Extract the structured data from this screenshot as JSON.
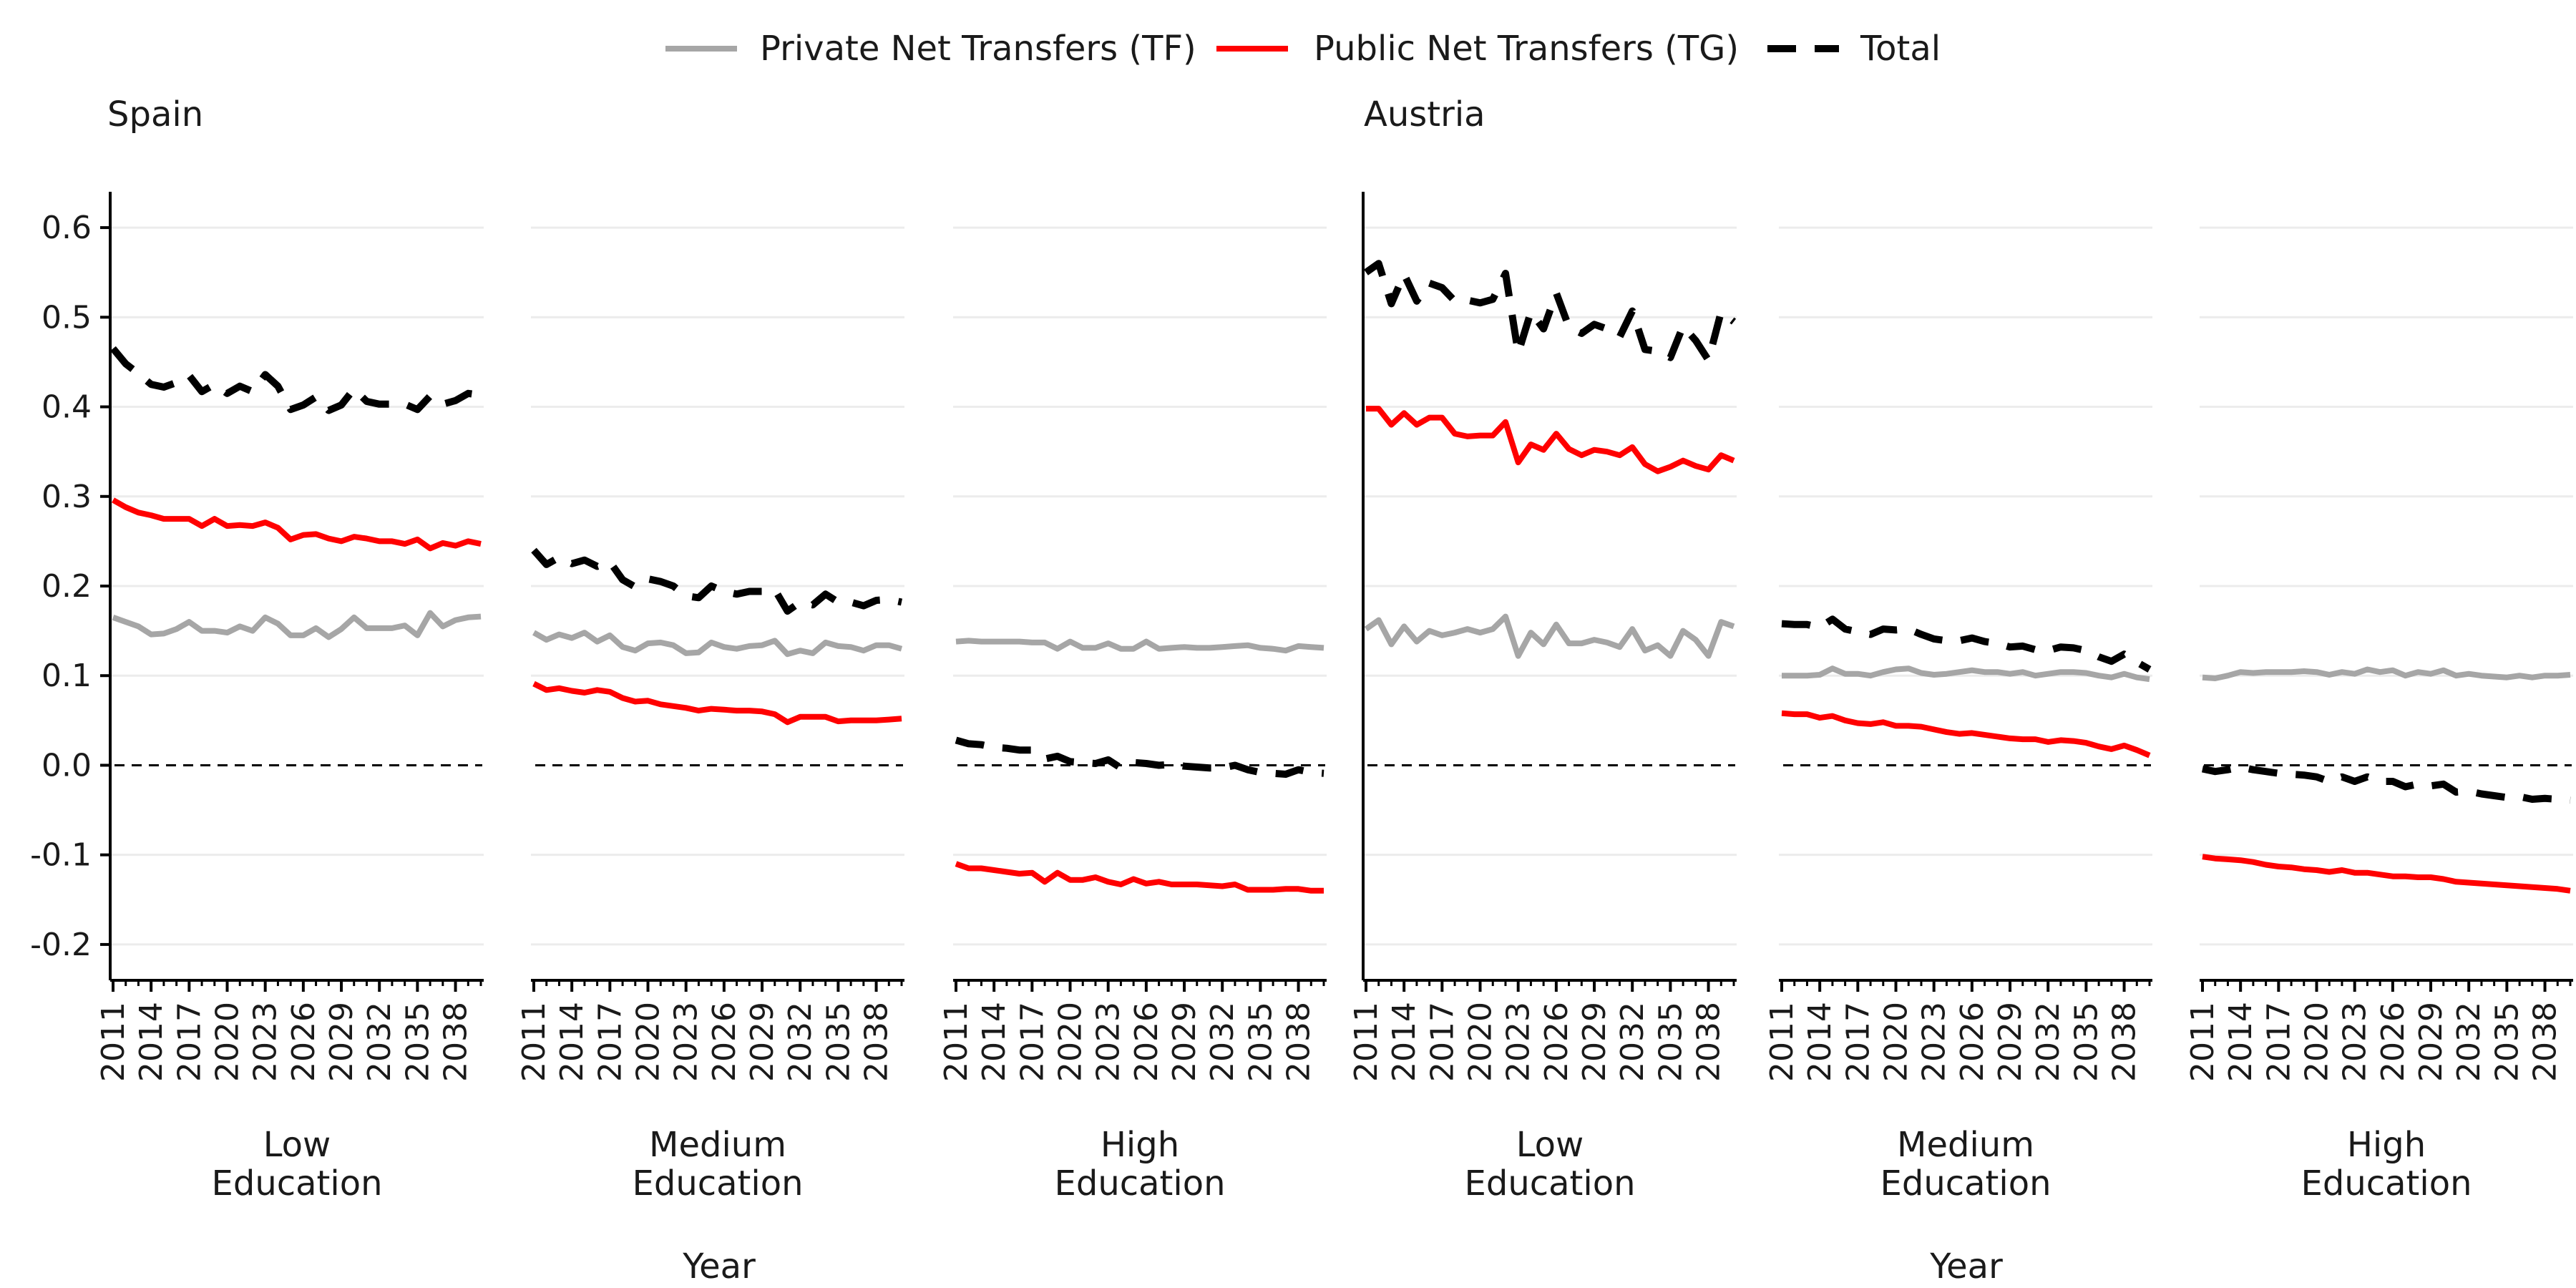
{
  "chart_data": {
    "type": "line",
    "legend": {
      "placement": "top-center",
      "entries": [
        {
          "label": "Private Net Transfers (TF)",
          "color": "#a6a6a6",
          "dash": "solid"
        },
        {
          "label": "Public Net Transfers (TG)",
          "color": "#ff0000",
          "dash": "solid"
        },
        {
          "label": "Total",
          "color": "#000000",
          "dash": "dashed"
        }
      ]
    },
    "countries": [
      "Spain",
      "Austria"
    ],
    "panel_labels": [
      "Low",
      "Education",
      "Medium",
      "Education",
      "High",
      "Education"
    ],
    "xlabel": "Year",
    "ylim": [
      -0.24,
      0.64
    ],
    "y_ticks": [
      0.6,
      0.5,
      0.4,
      0.3,
      0.2,
      0.1,
      0.0,
      -0.1,
      -0.2
    ],
    "y_tick_labels": [
      "0.6",
      "0.5",
      "0.4",
      "0.3",
      "0.2",
      "0.1",
      "0.0",
      "-0.1",
      "-0.2"
    ],
    "x_tick_labels": [
      "2011",
      "2014",
      "2017",
      "2020",
      "2023",
      "2026",
      "2029",
      "2032",
      "2035",
      "2038"
    ],
    "x": [
      2011,
      2012,
      2013,
      2014,
      2015,
      2016,
      2017,
      2018,
      2019,
      2020,
      2021,
      2022,
      2023,
      2024,
      2025,
      2026,
      2027,
      2028,
      2029,
      2030,
      2031,
      2032,
      2033,
      2034,
      2035,
      2036,
      2037,
      2038,
      2039,
      2040
    ],
    "grid": true,
    "reference_line": 0.0,
    "panels": [
      {
        "country": "Spain",
        "education": "Low",
        "TF": [
          0.165,
          0.16,
          0.155,
          0.146,
          0.147,
          0.152,
          0.16,
          0.15,
          0.15,
          0.148,
          0.155,
          0.15,
          0.165,
          0.158,
          0.145,
          0.145,
          0.153,
          0.143,
          0.152,
          0.165,
          0.153,
          0.153,
          0.153,
          0.156,
          0.145,
          0.17,
          0.155,
          0.162,
          0.165,
          0.166
        ],
        "TG": [
          0.296,
          0.288,
          0.282,
          0.279,
          0.275,
          0.275,
          0.275,
          0.267,
          0.275,
          0.267,
          0.268,
          0.267,
          0.271,
          0.265,
          0.252,
          0.257,
          0.258,
          0.253,
          0.25,
          0.255,
          0.253,
          0.25,
          0.25,
          0.247,
          0.252,
          0.242,
          0.248,
          0.245,
          0.25,
          0.247
        ],
        "Total": [
          0.465,
          0.448,
          0.437,
          0.425,
          0.422,
          0.427,
          0.435,
          0.417,
          0.425,
          0.415,
          0.423,
          0.417,
          0.436,
          0.423,
          0.397,
          0.402,
          0.411,
          0.396,
          0.402,
          0.42,
          0.406,
          0.403,
          0.403,
          0.403,
          0.397,
          0.412,
          0.403,
          0.407,
          0.415,
          0.413
        ]
      },
      {
        "country": "Spain",
        "education": "Medium",
        "TF": [
          0.148,
          0.14,
          0.146,
          0.142,
          0.148,
          0.138,
          0.145,
          0.132,
          0.128,
          0.136,
          0.137,
          0.134,
          0.125,
          0.126,
          0.137,
          0.132,
          0.13,
          0.133,
          0.134,
          0.139,
          0.124,
          0.128,
          0.125,
          0.137,
          0.133,
          0.132,
          0.128,
          0.134,
          0.134,
          0.13
        ],
        "TG": [
          0.091,
          0.084,
          0.086,
          0.083,
          0.081,
          0.084,
          0.082,
          0.075,
          0.071,
          0.072,
          0.068,
          0.066,
          0.064,
          0.061,
          0.063,
          0.062,
          0.061,
          0.061,
          0.06,
          0.057,
          0.048,
          0.054,
          0.054,
          0.054,
          0.049,
          0.05,
          0.05,
          0.05,
          0.051,
          0.052
        ],
        "Total": [
          0.24,
          0.224,
          0.232,
          0.225,
          0.229,
          0.222,
          0.227,
          0.207,
          0.199,
          0.208,
          0.205,
          0.2,
          0.189,
          0.187,
          0.2,
          0.194,
          0.191,
          0.194,
          0.194,
          0.196,
          0.172,
          0.182,
          0.179,
          0.191,
          0.182,
          0.182,
          0.178,
          0.184,
          0.185,
          0.182
        ]
      },
      {
        "country": "Spain",
        "education": "High",
        "TF": [
          0.138,
          0.139,
          0.138,
          0.138,
          0.138,
          0.138,
          0.137,
          0.137,
          0.13,
          0.138,
          0.131,
          0.131,
          0.136,
          0.13,
          0.13,
          0.138,
          0.13,
          0.131,
          0.132,
          0.131,
          0.131,
          0.132,
          0.133,
          0.134,
          0.131,
          0.13,
          0.128,
          0.133,
          0.132,
          0.131
        ],
        "TG": [
          -0.11,
          -0.115,
          -0.115,
          -0.117,
          -0.119,
          -0.121,
          -0.12,
          -0.13,
          -0.12,
          -0.128,
          -0.128,
          -0.125,
          -0.13,
          -0.133,
          -0.127,
          -0.132,
          -0.13,
          -0.133,
          -0.133,
          -0.133,
          -0.134,
          -0.135,
          -0.133,
          -0.139,
          -0.139,
          -0.139,
          -0.138,
          -0.138,
          -0.14,
          -0.14
        ],
        "Total": [
          0.028,
          0.024,
          0.023,
          0.02,
          0.019,
          0.017,
          0.017,
          0.007,
          0.01,
          0.004,
          0.003,
          0.002,
          0.006,
          -0.003,
          0.003,
          0.002,
          0.0,
          0.001,
          -0.001,
          -0.002,
          -0.003,
          -0.003,
          0.0,
          -0.005,
          -0.008,
          -0.009,
          -0.01,
          -0.005,
          -0.008,
          -0.009
        ]
      },
      {
        "country": "Austria",
        "education": "Low",
        "TF": [
          0.152,
          0.162,
          0.135,
          0.155,
          0.138,
          0.15,
          0.145,
          0.148,
          0.152,
          0.148,
          0.152,
          0.166,
          0.122,
          0.148,
          0.135,
          0.157,
          0.136,
          0.136,
          0.14,
          0.137,
          0.132,
          0.152,
          0.128,
          0.134,
          0.122,
          0.15,
          0.14,
          0.122,
          0.16,
          0.155
        ],
        "TG": [
          0.398,
          0.398,
          0.38,
          0.393,
          0.38,
          0.388,
          0.388,
          0.37,
          0.367,
          0.368,
          0.368,
          0.383,
          0.338,
          0.358,
          0.352,
          0.37,
          0.353,
          0.346,
          0.352,
          0.35,
          0.346,
          0.355,
          0.336,
          0.328,
          0.333,
          0.34,
          0.334,
          0.33,
          0.346,
          0.34
        ],
        "Total": [
          0.55,
          0.56,
          0.515,
          0.548,
          0.518,
          0.538,
          0.533,
          0.518,
          0.519,
          0.516,
          0.52,
          0.549,
          0.46,
          0.506,
          0.487,
          0.527,
          0.489,
          0.482,
          0.492,
          0.487,
          0.478,
          0.507,
          0.464,
          0.462,
          0.455,
          0.49,
          0.474,
          0.452,
          0.506,
          0.495
        ]
      },
      {
        "country": "Austria",
        "education": "Medium",
        "TF": [
          0.1,
          0.1,
          0.1,
          0.101,
          0.108,
          0.102,
          0.102,
          0.1,
          0.104,
          0.107,
          0.108,
          0.103,
          0.101,
          0.102,
          0.104,
          0.106,
          0.104,
          0.104,
          0.102,
          0.104,
          0.1,
          0.102,
          0.104,
          0.104,
          0.103,
          0.1,
          0.098,
          0.102,
          0.098,
          0.096
        ],
        "TG": [
          0.058,
          0.057,
          0.057,
          0.053,
          0.055,
          0.05,
          0.047,
          0.046,
          0.048,
          0.044,
          0.044,
          0.043,
          0.04,
          0.037,
          0.035,
          0.036,
          0.034,
          0.032,
          0.03,
          0.029,
          0.029,
          0.026,
          0.028,
          0.027,
          0.025,
          0.021,
          0.018,
          0.022,
          0.017,
          0.011
        ],
        "Total": [
          0.158,
          0.157,
          0.157,
          0.154,
          0.163,
          0.152,
          0.149,
          0.146,
          0.152,
          0.151,
          0.152,
          0.146,
          0.141,
          0.139,
          0.139,
          0.142,
          0.138,
          0.136,
          0.132,
          0.133,
          0.129,
          0.128,
          0.132,
          0.131,
          0.128,
          0.121,
          0.116,
          0.124,
          0.115,
          0.107
        ]
      },
      {
        "country": "Austria",
        "education": "High",
        "TF": [
          0.098,
          0.097,
          0.1,
          0.104,
          0.103,
          0.104,
          0.104,
          0.104,
          0.105,
          0.104,
          0.101,
          0.104,
          0.102,
          0.107,
          0.104,
          0.106,
          0.1,
          0.104,
          0.102,
          0.106,
          0.1,
          0.102,
          0.1,
          0.099,
          0.098,
          0.1,
          0.098,
          0.1,
          0.1,
          0.101
        ],
        "TG": [
          -0.102,
          -0.104,
          -0.105,
          -0.106,
          -0.108,
          -0.111,
          -0.113,
          -0.114,
          -0.116,
          -0.117,
          -0.119,
          -0.117,
          -0.12,
          -0.12,
          -0.122,
          -0.124,
          -0.124,
          -0.125,
          -0.125,
          -0.127,
          -0.13,
          -0.131,
          -0.132,
          -0.133,
          -0.134,
          -0.135,
          -0.136,
          -0.137,
          -0.138,
          -0.14
        ],
        "Total": [
          -0.004,
          -0.007,
          -0.005,
          -0.002,
          -0.005,
          -0.007,
          -0.009,
          -0.01,
          -0.011,
          -0.013,
          -0.018,
          -0.013,
          -0.018,
          -0.013,
          -0.018,
          -0.018,
          -0.024,
          -0.021,
          -0.023,
          -0.021,
          -0.03,
          -0.029,
          -0.032,
          -0.034,
          -0.036,
          -0.035,
          -0.038,
          -0.037,
          -0.038,
          -0.039
        ]
      }
    ]
  }
}
